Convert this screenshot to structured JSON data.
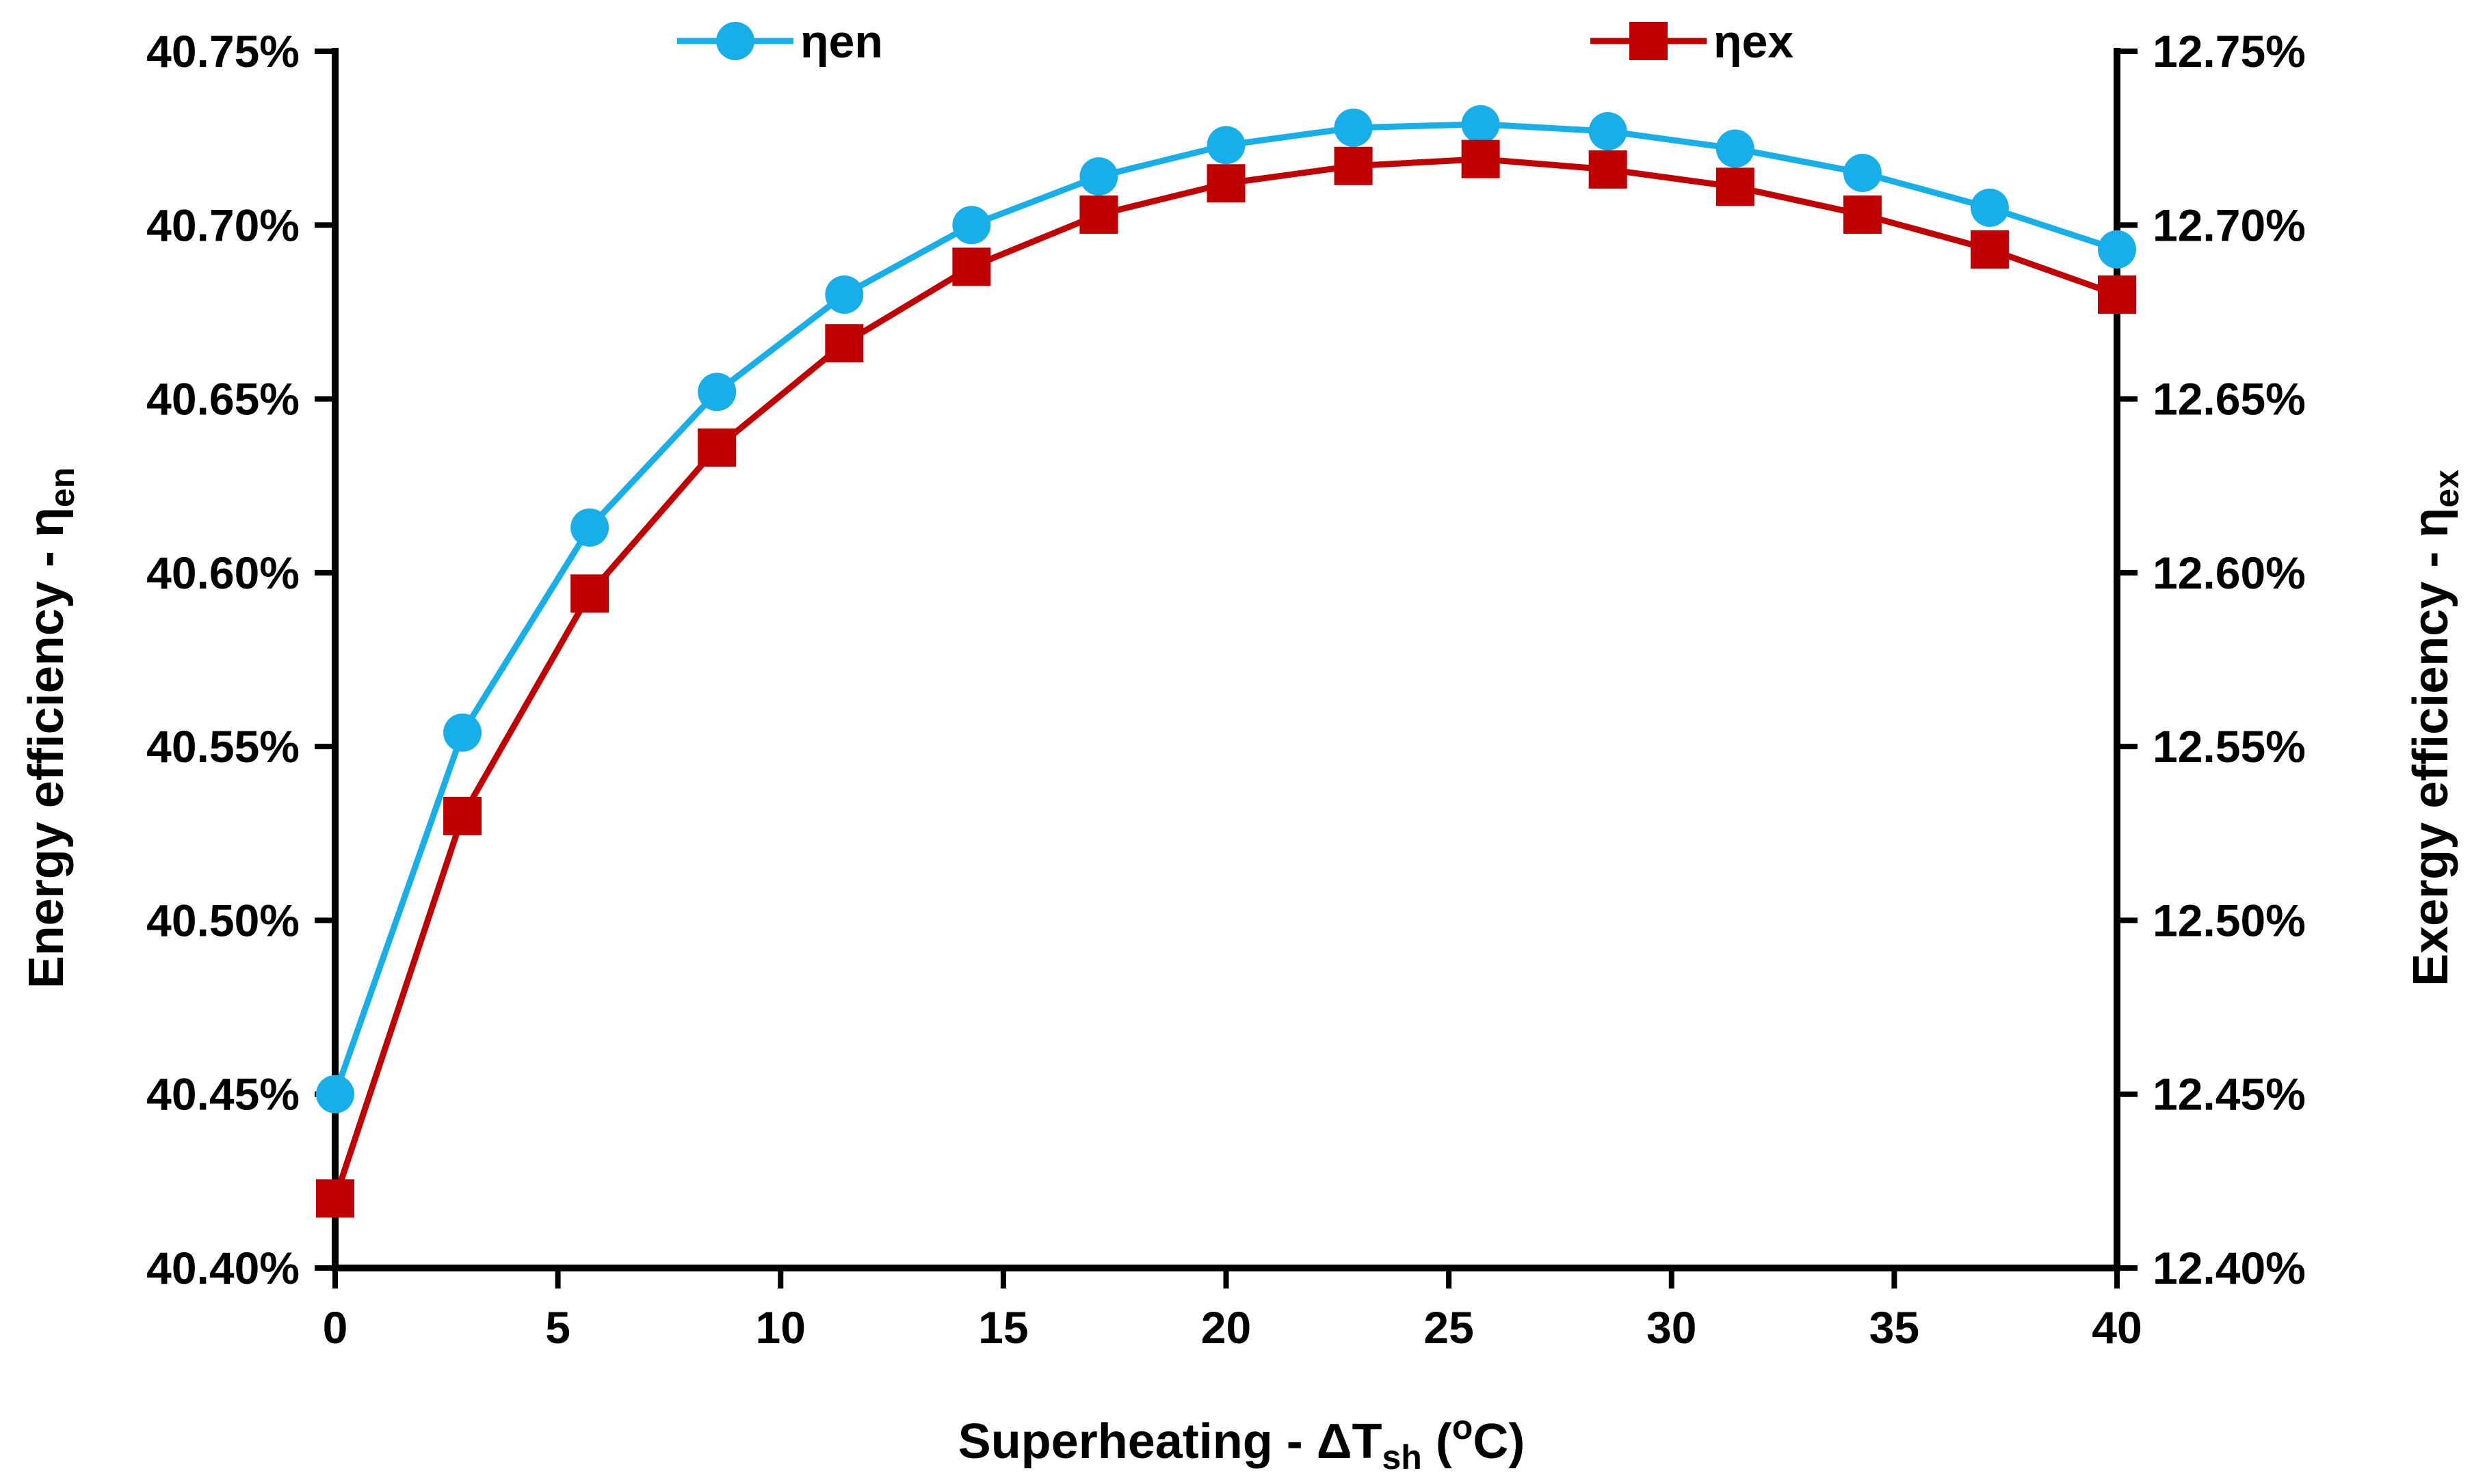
{
  "chart_data": {
    "type": "line",
    "xlabel": {
      "prefix": "Superheating - ΔT",
      "sub": "sh",
      "mid": " (",
      "sup": "o",
      "suffix": "C)"
    },
    "ylabel_left": {
      "prefix": "Energy efficiency - η",
      "sub": "en"
    },
    "ylabel_right": {
      "prefix": "Exergy efficiency - η",
      "sub": "ex"
    },
    "x_ticks": [
      "0",
      "5",
      "10",
      "15",
      "20",
      "25",
      "30",
      "35",
      "40"
    ],
    "xlim": [
      0,
      40
    ],
    "y_left_ticks": [
      "40.40%",
      "40.45%",
      "40.50%",
      "40.55%",
      "40.60%",
      "40.65%",
      "40.70%",
      "40.75%"
    ],
    "ylim_left": [
      40.4,
      40.75
    ],
    "y_right_ticks": [
      "12.40%",
      "12.45%",
      "12.50%",
      "12.55%",
      "12.60%",
      "12.65%",
      "12.70%",
      "12.75%"
    ],
    "ylim_right": [
      12.4,
      12.75
    ],
    "grid": false,
    "legend_position": "top",
    "series": [
      {
        "name": "ηen",
        "axis": "left",
        "color": "#18AEE8",
        "marker": "circle",
        "x": [
          0,
          2.857,
          5.714,
          8.571,
          11.429,
          14.286,
          17.143,
          20,
          22.857,
          25.714,
          28.571,
          31.429,
          34.286,
          37.143,
          40
        ],
        "y": [
          40.45,
          40.554,
          40.613,
          40.652,
          40.68,
          40.7,
          40.714,
          40.723,
          40.728,
          40.729,
          40.727,
          40.722,
          40.715,
          40.705,
          40.693
        ]
      },
      {
        "name": "ηex",
        "axis": "right",
        "color": "#C00000",
        "marker": "square",
        "x": [
          0,
          2.857,
          5.714,
          8.571,
          11.429,
          14.286,
          17.143,
          20,
          22.857,
          25.714,
          28.571,
          31.429,
          34.286,
          37.143,
          40
        ],
        "y": [
          12.42,
          12.53,
          12.594,
          12.636,
          12.666,
          12.688,
          12.703,
          12.712,
          12.717,
          12.719,
          12.716,
          12.711,
          12.703,
          12.693,
          12.68
        ]
      }
    ]
  }
}
